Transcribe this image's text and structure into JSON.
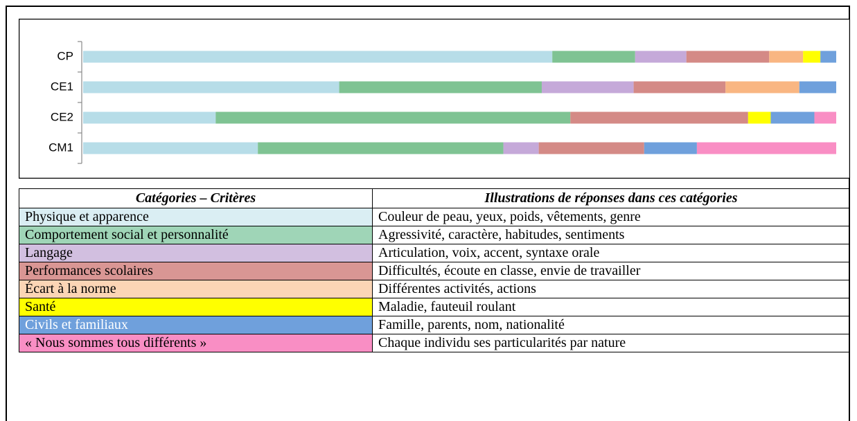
{
  "chart_data": {
    "type": "stacked-bar",
    "categories": [
      "CP",
      "CE1",
      "CE2",
      "CM1"
    ],
    "xlim": [
      0,
      100
    ],
    "series": [
      {
        "name": "Physique et apparence",
        "color": "#b7dde8",
        "values": [
          62.3,
          34.0,
          17.6,
          23.2
        ]
      },
      {
        "name": "Comportement social et personnalité",
        "color": "#7fc393",
        "values": [
          11.0,
          26.9,
          47.1,
          32.6
        ]
      },
      {
        "name": "Langage",
        "color": "#c5a9d9",
        "values": [
          6.8,
          12.2,
          0,
          4.7
        ]
      },
      {
        "name": "Performances scolaires",
        "color": "#d48a86",
        "values": [
          11.0,
          12.2,
          23.6,
          14.0
        ]
      },
      {
        "name": "Écart à la norme",
        "color": "#f9b682",
        "values": [
          4.5,
          9.8,
          0,
          0
        ]
      },
      {
        "name": "Santé",
        "color": "#ffff00",
        "values": [
          2.3,
          0,
          3.0,
          0
        ]
      },
      {
        "name": "Civils et familiaux",
        "color": "#6fa0dc",
        "values": [
          2.1,
          4.9,
          5.8,
          7.0
        ]
      },
      {
        "name": "« Nous sommes tous différents »",
        "color": "#f98ec4",
        "values": [
          0,
          0,
          2.9,
          18.5
        ]
      }
    ]
  },
  "table": {
    "headers": [
      "Catégories – Critères",
      "Illustrations de réponses dans ces catégories"
    ],
    "colors": [
      "#daeef3",
      "#9fd5b7",
      "#d2bfe0",
      "#d99694",
      "#fbd5b5",
      "#ffff00",
      "#6fa0dc",
      "#f98ec4"
    ],
    "text_colors": [
      "#000000",
      "#000000",
      "#000000",
      "#000000",
      "#000000",
      "#000000",
      "#ffffff",
      "#000000"
    ],
    "rows": [
      "Couleur de peau, yeux, poids, vêtements, genre",
      "Agressivité, caractère, habitudes, sentiments",
      "Articulation, voix, accent, syntaxe orale",
      "Difficultés, écoute en classe, envie de travailler",
      "Différentes activités, actions",
      "Maladie, fauteuil roulant",
      "Famille, parents, nom, nationalité",
      "Chaque individu ses particularités par nature"
    ]
  }
}
